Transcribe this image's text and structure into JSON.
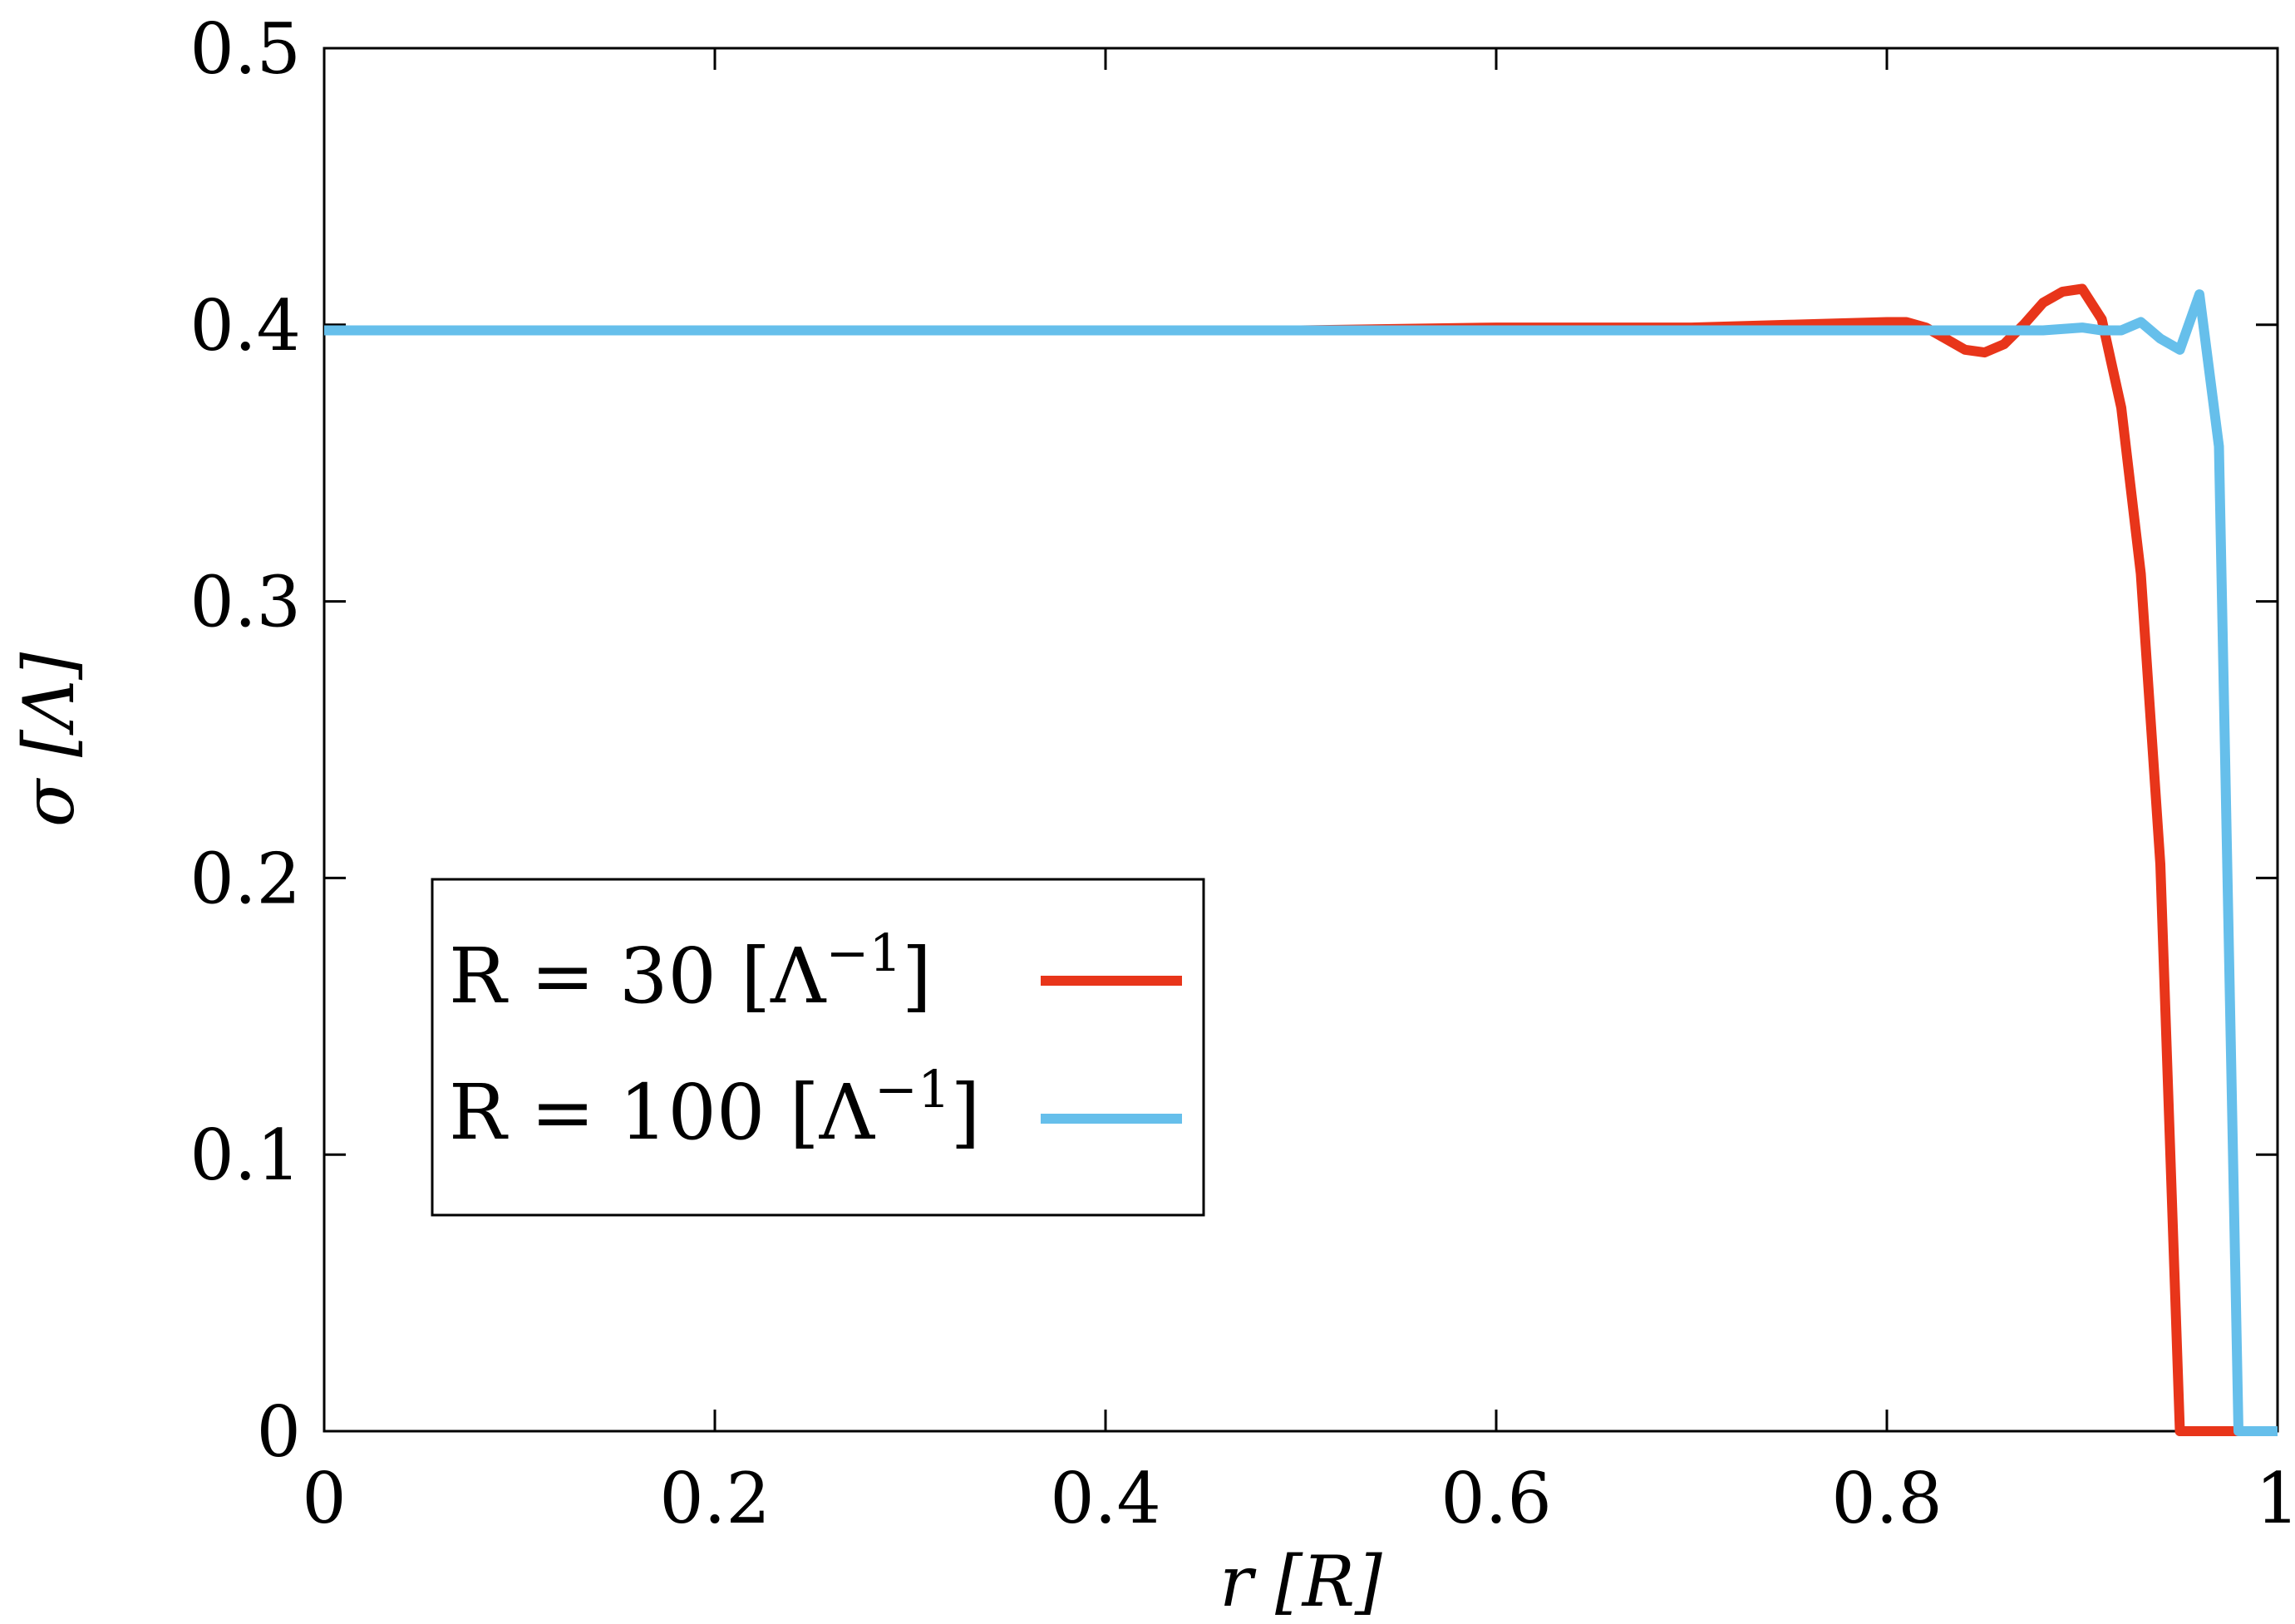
{
  "chart_data": {
    "type": "line",
    "xlabel": "r [R]",
    "ylabel": "σ [Λ]",
    "xlim": [
      0,
      1
    ],
    "ylim": [
      0,
      0.5
    ],
    "xticks": [
      0,
      0.2,
      0.4,
      0.6,
      0.8,
      1
    ],
    "yticks": [
      0,
      0.1,
      0.2,
      0.3,
      0.4,
      0.5
    ],
    "xtick_labels": [
      "0",
      "0.2",
      "0.4",
      "0.6",
      "0.8",
      "1"
    ],
    "ytick_labels": [
      "0",
      "0.1",
      "0.2",
      "0.3",
      "0.4",
      "0.5"
    ],
    "grid": false,
    "legend_position": "lower-left",
    "series": [
      {
        "name": "R = 30 [Λ⁻¹]",
        "color": "#e8351a",
        "x": [
          0.0,
          0.1,
          0.2,
          0.3,
          0.4,
          0.5,
          0.6,
          0.7,
          0.75,
          0.8,
          0.81,
          0.82,
          0.83,
          0.84,
          0.85,
          0.86,
          0.87,
          0.88,
          0.89,
          0.9,
          0.91,
          0.92,
          0.93,
          0.94,
          0.95,
          0.96,
          0.97,
          0.98,
          0.99,
          1.0
        ],
        "y": [
          0.398,
          0.398,
          0.398,
          0.398,
          0.398,
          0.398,
          0.399,
          0.399,
          0.4,
          0.401,
          0.401,
          0.399,
          0.395,
          0.391,
          0.39,
          0.393,
          0.4,
          0.408,
          0.412,
          0.413,
          0.402,
          0.37,
          0.31,
          0.205,
          0.0,
          0.0,
          0.0,
          0.0,
          0.0,
          0.0
        ]
      },
      {
        "name": "R = 100 [Λ⁻¹]",
        "color": "#66bfeb",
        "x": [
          0.0,
          0.1,
          0.2,
          0.3,
          0.4,
          0.5,
          0.6,
          0.7,
          0.8,
          0.85,
          0.88,
          0.9,
          0.91,
          0.92,
          0.93,
          0.94,
          0.95,
          0.96,
          0.97,
          0.98,
          0.99,
          1.0
        ],
        "y": [
          0.398,
          0.398,
          0.398,
          0.398,
          0.398,
          0.398,
          0.398,
          0.398,
          0.398,
          0.398,
          0.398,
          0.399,
          0.398,
          0.398,
          0.401,
          0.395,
          0.391,
          0.411,
          0.356,
          0.0,
          0.0,
          0.0
        ]
      }
    ]
  },
  "legend": {
    "entries": [
      {
        "main": "R = 30 [Λ",
        "sup": "−1",
        "close": "]"
      },
      {
        "main": "R = 100 [Λ",
        "sup": "−1",
        "close": "]"
      }
    ]
  }
}
